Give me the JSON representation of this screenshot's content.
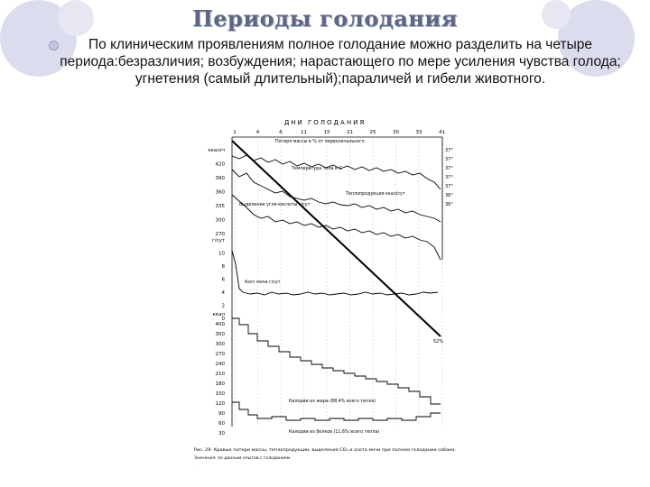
{
  "slide": {
    "title": "Периоды голодания",
    "body": "По клиническим проявлениям полное голодание можно разделить на четыре периода:безразличия; возбуждения; нарастающего по мере усиления чувства голода; угнетения (самый длительный);параличей и гибели животного."
  },
  "figure": {
    "header": "ДНИ ГОЛОДАНИЯ",
    "days": [
      "1",
      "4",
      "6",
      "11",
      "15",
      "21",
      "25",
      "30",
      "33",
      "41"
    ],
    "left_scale_top": [
      "ккал/ч",
      "420",
      "390",
      "360",
      "335",
      "300",
      "270"
    ],
    "left_scale_nitrogen": [
      "г/сут",
      "10",
      "8",
      "6",
      "4",
      "2",
      "0"
    ],
    "left_scale_bottom": [
      "ккал",
      "400",
      "350",
      "300",
      "270",
      "240",
      "210",
      "180",
      "150",
      "120",
      "90",
      "60",
      "30"
    ],
    "right_scale": [
      "37°",
      "37°",
      "37°",
      "37°",
      "37°",
      "36°",
      "36°"
    ],
    "curve_labels": {
      "mass": "Потеря массы в % от первоначального",
      "temp": "Температура тела в С",
      "heat": "Теплопродукция ккал/сут",
      "acid": "Выделение угле-кислоты г/сут",
      "nitrogen": "Азот мочи г/сут",
      "fat": "Калории из жира (88,4% всего тепла)",
      "protein": "Калории из белков (11,6% всего тепла)"
    },
    "end_percent": "52%",
    "caption": "Рис. 29. Кривые потери массы, теплопродукции, выделения CO₂ и азота мочи при полном голодании собаки.",
    "caption2": "Значения: по данным опытов с голоданием"
  }
}
